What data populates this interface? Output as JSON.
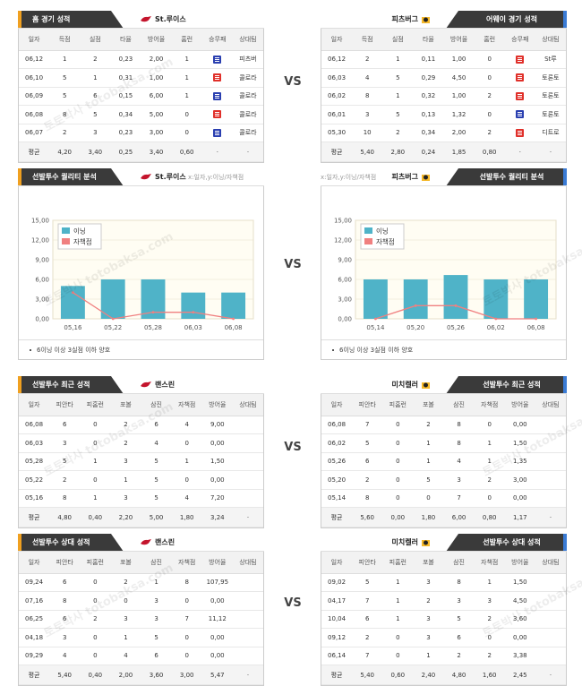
{
  "vs_label": "VS",
  "section1": {
    "left": {
      "title": "홈 경기 성적",
      "team": "St.루이스",
      "headers": [
        "일자",
        "득점",
        "실점",
        "타율",
        "방어율",
        "홈런",
        "승무패",
        "상대팀"
      ],
      "rows": [
        [
          "06,12",
          "1",
          "2",
          "0,23",
          "2,00",
          "1",
          "W",
          "피츠버"
        ],
        [
          "06,10",
          "5",
          "1",
          "0,31",
          "1,00",
          "1",
          "L",
          "콜로라"
        ],
        [
          "06,09",
          "5",
          "6",
          "0,15",
          "6,00",
          "1",
          "W",
          "콜로라"
        ],
        [
          "06,08",
          "8",
          "5",
          "0,34",
          "5,00",
          "0",
          "L",
          "콜로라"
        ],
        [
          "06,07",
          "2",
          "3",
          "0,23",
          "3,00",
          "0",
          "W",
          "콜로라"
        ]
      ],
      "avg": [
        "평균",
        "4,20",
        "3,40",
        "0,25",
        "3,40",
        "0,60",
        "·",
        "·"
      ]
    },
    "right": {
      "title": "어웨이 경기 성적",
      "team": "피츠버그",
      "headers": [
        "일자",
        "득점",
        "실점",
        "타율",
        "방어율",
        "홈런",
        "승무패",
        "상대팀"
      ],
      "rows": [
        [
          "06,12",
          "2",
          "1",
          "0,11",
          "1,00",
          "0",
          "L",
          "St루"
        ],
        [
          "06,03",
          "4",
          "5",
          "0,29",
          "4,50",
          "0",
          "L",
          "토론토"
        ],
        [
          "06,02",
          "8",
          "1",
          "0,32",
          "1,00",
          "2",
          "L",
          "토론토"
        ],
        [
          "06,01",
          "3",
          "5",
          "0,13",
          "1,32",
          "0",
          "W",
          "토론토"
        ],
        [
          "05,30",
          "10",
          "2",
          "0,34",
          "2,00",
          "2",
          "L",
          "디트로"
        ]
      ],
      "avg": [
        "평균",
        "5,40",
        "2,80",
        "0,24",
        "1,85",
        "0,80",
        "·",
        "·"
      ]
    }
  },
  "section2": {
    "left": {
      "title": "선발투수 퀄리티 분석",
      "team": "St.루이스",
      "sub": "x:일자,y:이닝/자책점",
      "note": "6이닝 이상 3실점 이하 양호"
    },
    "right": {
      "title": "선발투수 퀄리티 분석",
      "team": "피츠버그",
      "sub": "x:일자,y:이닝/자책점",
      "note": "6이닝 이상 3실점 이하 양호"
    }
  },
  "chart_data": [
    {
      "type": "bar",
      "categories": [
        "05,16",
        "05,22",
        "05,28",
        "06,03",
        "06,08"
      ],
      "series": [
        {
          "name": "이닝",
          "values": [
            5.0,
            6.0,
            6.0,
            4.0,
            4.0
          ],
          "color": "#4fb3c8"
        },
        {
          "name": "자책점",
          "values": [
            4,
            0,
            1,
            1,
            0
          ],
          "color": "#f08080",
          "kind": "line"
        }
      ],
      "yticks": [
        "0,00",
        "3,00",
        "6,00",
        "9,00",
        "12,00",
        "15,00"
      ],
      "ylim": [
        0,
        15
      ]
    },
    {
      "type": "bar",
      "categories": [
        "05,14",
        "05,20",
        "05,26",
        "06,02",
        "06,08"
      ],
      "series": [
        {
          "name": "이닝",
          "values": [
            6.0,
            6.0,
            6.67,
            6.0,
            6.0
          ],
          "color": "#4fb3c8"
        },
        {
          "name": "자책점",
          "values": [
            0,
            2,
            2,
            0,
            0
          ],
          "color": "#f08080",
          "kind": "line"
        }
      ],
      "yticks": [
        "0,00",
        "3,00",
        "6,00",
        "9,00",
        "12,00",
        "15,00"
      ],
      "ylim": [
        0,
        15
      ]
    }
  ],
  "section3": {
    "left": {
      "title": "선발투수 최근 성적",
      "team": "랜스린",
      "headers": [
        "일자",
        "피안타",
        "피홈런",
        "포볼",
        "삼진",
        "자책점",
        "방어율",
        "상대팀"
      ],
      "rows": [
        [
          "06,08",
          "6",
          "0",
          "2",
          "6",
          "4",
          "9,00",
          ""
        ],
        [
          "06,03",
          "3",
          "0",
          "2",
          "4",
          "0",
          "0,00",
          ""
        ],
        [
          "05,28",
          "5",
          "1",
          "3",
          "5",
          "1",
          "1,50",
          ""
        ],
        [
          "05,22",
          "2",
          "0",
          "1",
          "5",
          "0",
          "0,00",
          ""
        ],
        [
          "05,16",
          "8",
          "1",
          "3",
          "5",
          "4",
          "7,20",
          ""
        ]
      ],
      "avg": [
        "평균",
        "4,80",
        "0,40",
        "2,20",
        "5,00",
        "1,80",
        "3,24",
        "·"
      ]
    },
    "right": {
      "title": "선발투수 최근 성적",
      "team": "미치켈러",
      "headers": [
        "일자",
        "피안타",
        "피홈런",
        "포볼",
        "삼진",
        "자책점",
        "방어율",
        "상대팀"
      ],
      "rows": [
        [
          "06,08",
          "7",
          "0",
          "2",
          "8",
          "0",
          "0,00",
          ""
        ],
        [
          "06,02",
          "5",
          "0",
          "1",
          "8",
          "1",
          "1,50",
          ""
        ],
        [
          "05,26",
          "6",
          "0",
          "1",
          "4",
          "1",
          "1,35",
          ""
        ],
        [
          "05,20",
          "2",
          "0",
          "5",
          "3",
          "2",
          "3,00",
          ""
        ],
        [
          "05,14",
          "8",
          "0",
          "0",
          "7",
          "0",
          "0,00",
          ""
        ]
      ],
      "avg": [
        "평균",
        "5,60",
        "0,00",
        "1,80",
        "6,00",
        "0,80",
        "1,17",
        "·"
      ]
    }
  },
  "section4": {
    "left": {
      "title": "선발투수 상대 성적",
      "team": "랜스린",
      "headers": [
        "일자",
        "피안타",
        "피홈런",
        "포볼",
        "삼진",
        "자책점",
        "방어율",
        "상대팀"
      ],
      "rows": [
        [
          "09,24",
          "6",
          "0",
          "2",
          "1",
          "8",
          "107,95",
          ""
        ],
        [
          "07,16",
          "8",
          "0",
          "0",
          "3",
          "0",
          "0,00",
          ""
        ],
        [
          "06,25",
          "6",
          "2",
          "3",
          "3",
          "7",
          "11,12",
          ""
        ],
        [
          "04,18",
          "3",
          "0",
          "1",
          "5",
          "0",
          "0,00",
          ""
        ],
        [
          "09,29",
          "4",
          "0",
          "4",
          "6",
          "0",
          "0,00",
          ""
        ]
      ],
      "avg": [
        "평균",
        "5,40",
        "0,40",
        "2,00",
        "3,60",
        "3,00",
        "5,47",
        "·"
      ]
    },
    "right": {
      "title": "선발투수 상대 성적",
      "team": "미치켈러",
      "headers": [
        "일자",
        "피안타",
        "피홈런",
        "포볼",
        "삼진",
        "자책점",
        "방어율",
        "상대팀"
      ],
      "rows": [
        [
          "09,02",
          "5",
          "1",
          "3",
          "8",
          "1",
          "1,50",
          ""
        ],
        [
          "04,17",
          "7",
          "1",
          "2",
          "3",
          "3",
          "4,50",
          ""
        ],
        [
          "10,04",
          "6",
          "1",
          "3",
          "5",
          "2",
          "3,60",
          ""
        ],
        [
          "09,12",
          "2",
          "0",
          "3",
          "6",
          "0",
          "0,00",
          ""
        ],
        [
          "06,14",
          "7",
          "0",
          "1",
          "2",
          "2",
          "3,38",
          ""
        ]
      ],
      "avg": [
        "평균",
        "5,40",
        "0,60",
        "2,40",
        "4,80",
        "1,60",
        "2,45",
        "·"
      ]
    }
  },
  "watermark": "토토박사 totobaksa.com"
}
